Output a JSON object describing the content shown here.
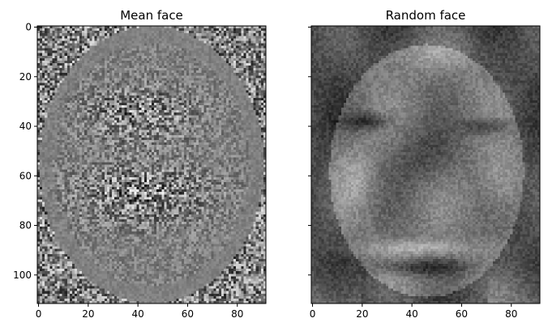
{
  "chart_data": [
    {
      "type": "heatmap",
      "title": "Mean face",
      "colormap": "gray",
      "image_shape": [
        112,
        92
      ],
      "xticks": [
        0,
        20,
        40,
        60,
        80
      ],
      "yticks": [
        0,
        20,
        40,
        60,
        80,
        100
      ],
      "xlim": [
        -0.5,
        91.5
      ],
      "ylim": [
        111.5,
        -0.5
      ],
      "tick_labels_y_visible": true
    },
    {
      "type": "heatmap",
      "title": "Random face",
      "colormap": "gray",
      "image_shape": [
        112,
        92
      ],
      "xticks": [
        0,
        20,
        40,
        60,
        80
      ],
      "yticks": [
        0,
        20,
        40,
        60,
        80,
        100
      ],
      "xlim": [
        -0.5,
        91.5
      ],
      "ylim": [
        111.5,
        -0.5
      ],
      "tick_labels_y_visible": false
    }
  ]
}
